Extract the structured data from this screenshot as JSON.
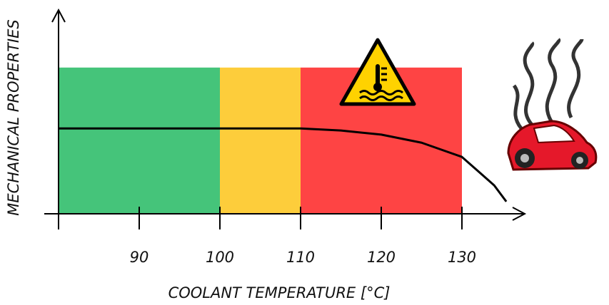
{
  "chart_data": {
    "type": "line",
    "x_label": "COOLANT TEMPERATURE [°C]",
    "y_label": "MECHANICAL PROPERTIES",
    "xlim": [
      80,
      138
    ],
    "ylim": [
      0,
      100
    ],
    "xticks": [
      90,
      100,
      110,
      120,
      130
    ],
    "zones": [
      {
        "from": 80,
        "to": 100,
        "top": 72,
        "color": "#45c47a"
      },
      {
        "from": 100,
        "to": 110,
        "top": 72,
        "color": "#fdcd3b"
      },
      {
        "from": 110,
        "to": 130,
        "top": 72,
        "color": "#fe4444"
      }
    ],
    "series": [
      {
        "color": "#000000",
        "x": [
          80,
          110,
          115,
          120,
          125,
          130,
          132,
          134,
          135.5
        ],
        "values": [
          42,
          42,
          41,
          39,
          35,
          28,
          21,
          14,
          6
        ]
      }
    ]
  }
}
